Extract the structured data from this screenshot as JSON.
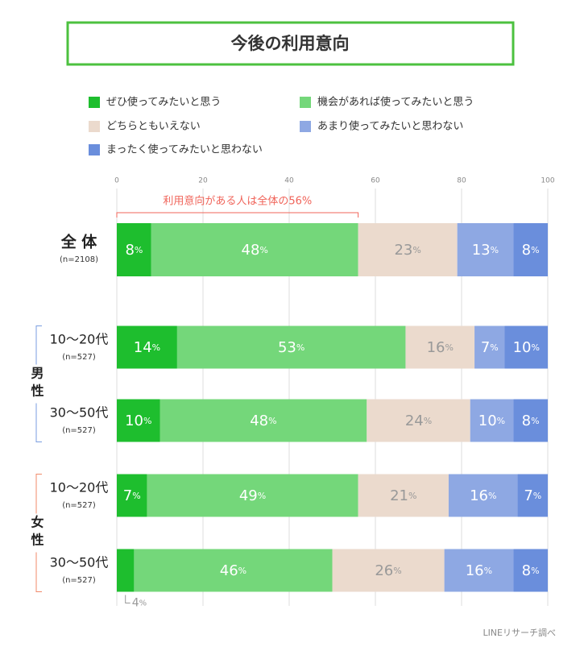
{
  "chart_data": {
    "type": "stacked-bar-horizontal",
    "title": "今後の利用意向",
    "categories": [
      "全 体",
      "10〜20代",
      "30〜50代",
      "10〜20代",
      "30〜50代"
    ],
    "sample_sizes": [
      "(n=2108)",
      "(n=527)",
      "(n=527)",
      "(n=527)",
      "(n=527)"
    ],
    "groups": [
      {
        "name": "男性",
        "color": "#7a9ee0"
      },
      {
        "name": "女性",
        "color": "#f08a6a"
      }
    ],
    "annotation": "利用意向がある人は全体の56%",
    "annotation_color": "#f0645a",
    "series": [
      {
        "name": "ぜひ使ってみたいと思う",
        "color": "#1ebe2e",
        "values": [
          8,
          14,
          10,
          7,
          4
        ],
        "value_labels": [
          "8%",
          "14%",
          "10%",
          "7%",
          "4%"
        ]
      },
      {
        "name": "機会があれば使ってみたいと思う",
        "color": "#74d77a",
        "values": [
          48,
          53,
          48,
          49,
          46
        ],
        "value_labels": [
          "48%",
          "53%",
          "48%",
          "49%",
          "46%"
        ]
      },
      {
        "name": "どちらともいえない",
        "color": "#ebdacd",
        "values": [
          23,
          16,
          24,
          21,
          26
        ],
        "value_labels": [
          "23%",
          "16%",
          "24%",
          "21%",
          "26%"
        ]
      },
      {
        "name": "あまり使ってみたいと思わない",
        "color": "#8ea8e3",
        "values": [
          13,
          7,
          10,
          16,
          16
        ],
        "value_labels": [
          "13%",
          "7%",
          "10%",
          "16%",
          "16%"
        ]
      },
      {
        "name": "まったく使ってみたいと思わない",
        "color": "#6a8edc",
        "values": [
          8,
          10,
          8,
          7,
          8
        ],
        "value_labels": [
          "8%",
          "10%",
          "8%",
          "7%",
          "8%"
        ]
      }
    ],
    "xlim": [
      0,
      100
    ],
    "xticks": [
      0,
      20,
      40,
      60,
      80,
      100
    ],
    "grid": true,
    "source": "LINEリサーチ調べ"
  }
}
